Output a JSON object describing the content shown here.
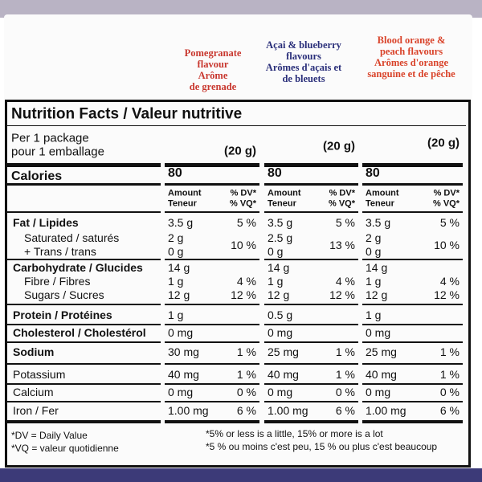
{
  "flavours": [
    {
      "lines": [
        "Pomegranate",
        "flavour",
        "Arôme",
        "de grenade"
      ],
      "color": "#c8372e"
    },
    {
      "lines": [
        "Açai & blueberry",
        "flavours",
        "Arômes d'açais et",
        "de bleuets"
      ],
      "color": "#2a2f7a"
    },
    {
      "lines": [
        "Blood orange &",
        "peach flavours",
        "Arômes d'orange",
        "sanguine et de pêche"
      ],
      "color": "#d9432a"
    }
  ],
  "title": "Nutrition Facts / Valeur nutritive",
  "serving": [
    "Per 1 package",
    "pour 1 emballage"
  ],
  "serving_size": [
    "(20 g)",
    "(20 g)",
    "(20 g)"
  ],
  "calories": {
    "label": "Calories",
    "values": [
      "80",
      "80",
      "80"
    ]
  },
  "column_header": {
    "amount": [
      "Amount",
      "Teneur"
    ],
    "dv": [
      "% DV*",
      "% VQ*"
    ]
  },
  "rows": [
    {
      "label": "Fat / Lipides",
      "bold": true,
      "amounts": [
        "3.5 g",
        "3.5 g",
        "3.5 g"
      ],
      "dv": [
        "5 %",
        "5 %",
        "5 %"
      ]
    },
    {
      "label": "Saturated / saturés",
      "amounts": [
        "2 g",
        "2.5 g",
        "2 g"
      ],
      "dv": [
        "10 %",
        "13 %",
        "10 %"
      ]
    },
    {
      "label": "+ Trans / trans",
      "amounts": [
        "0 g",
        "0 g",
        "0 g"
      ]
    },
    {
      "label": "Carbohydrate / Glucides",
      "bold": true,
      "amounts": [
        "14 g",
        "14 g",
        "14 g"
      ]
    },
    {
      "label": "Fibre / Fibres",
      "amounts": [
        "1 g",
        "1 g",
        "1 g"
      ],
      "dv": [
        "4 %",
        "4 %",
        "4 %"
      ]
    },
    {
      "label": "Sugars / Sucres",
      "amounts": [
        "12 g",
        "12 g",
        "12 g"
      ],
      "dv": [
        "12 %",
        "12 %",
        "12 %"
      ]
    },
    {
      "label": "Protein / Protéines",
      "bold": true,
      "amounts": [
        "1 g",
        "0.5 g",
        "1 g"
      ]
    },
    {
      "label": "Cholesterol / Cholestérol",
      "bold": true,
      "amounts": [
        "0 mg",
        "0 mg",
        "0 mg"
      ]
    },
    {
      "label": "Sodium",
      "bold": true,
      "amounts": [
        "30 mg",
        "25 mg",
        "25 mg"
      ],
      "dv": [
        "1 %",
        "1 %",
        "1 %"
      ]
    },
    {
      "label": "Potassium",
      "amounts": [
        "40 mg",
        "40 mg",
        "40 mg"
      ],
      "dv": [
        "1 %",
        "1 %",
        "1 %"
      ]
    },
    {
      "label": "Calcium",
      "amounts": [
        "0 mg",
        "0 mg",
        "0 mg"
      ],
      "dv": [
        "0 %",
        "0 %",
        "0 %"
      ]
    },
    {
      "label": "Iron / Fer",
      "amounts": [
        "1.00 mg",
        "1.00 mg",
        "1.00 mg"
      ],
      "dv": [
        "6 %",
        "6 %",
        "6 %"
      ]
    }
  ],
  "footnotes_left": [
    "*DV = Daily Value",
    "*VQ = valeur quotidienne"
  ],
  "footnotes_right": [
    "*5% or less is a little, 15% or more is a lot",
    "*5 % ou moins c'est peu, 15 % ou plus c'est beaucoup"
  ]
}
